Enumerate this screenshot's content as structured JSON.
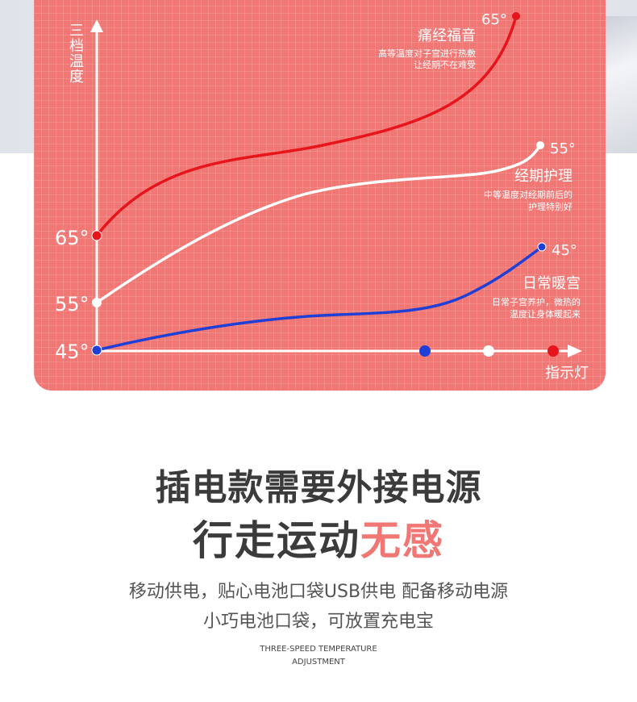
{
  "chart_data": {
    "type": "line",
    "ylabel": "三档温度",
    "xlabel": "指示灯",
    "y_ticks": [
      "65°",
      "55°",
      "45°"
    ],
    "series": [
      {
        "name": "痛经福音",
        "color": "#e8141c",
        "start_label": "65°",
        "end_label": "65°",
        "description_lines": [
          "高等温度对子宫进行热敷",
          "让经期不在难受"
        ]
      },
      {
        "name": "经期护理",
        "color": "#ffffff",
        "start_label": "55°",
        "end_label": "55°",
        "description_lines": [
          "中等温度对经期前后的",
          "护理特别好"
        ]
      },
      {
        "name": "日常暖宫",
        "color": "#1f3fd6",
        "start_label": "45°",
        "end_label": "45°",
        "description_lines": [
          "日常子宫养护，微热的",
          "温度让身体暖起来"
        ]
      }
    ],
    "indicator_lights": [
      "#1f3fd6",
      "#ffffff",
      "#e8141c"
    ]
  },
  "headline": {
    "line1": "插电款需要外接电源",
    "line2_main": "行走运动",
    "line2_accent": "无感"
  },
  "description": {
    "line1": "移动供电，贴心电池口袋USB供电 配备移动电源",
    "line2": "小巧电池口袋，可放置充电宝"
  },
  "english_caption": {
    "line1": "THREE-SPEED TEMPERATURE",
    "line2": "ADJUSTMENT"
  }
}
